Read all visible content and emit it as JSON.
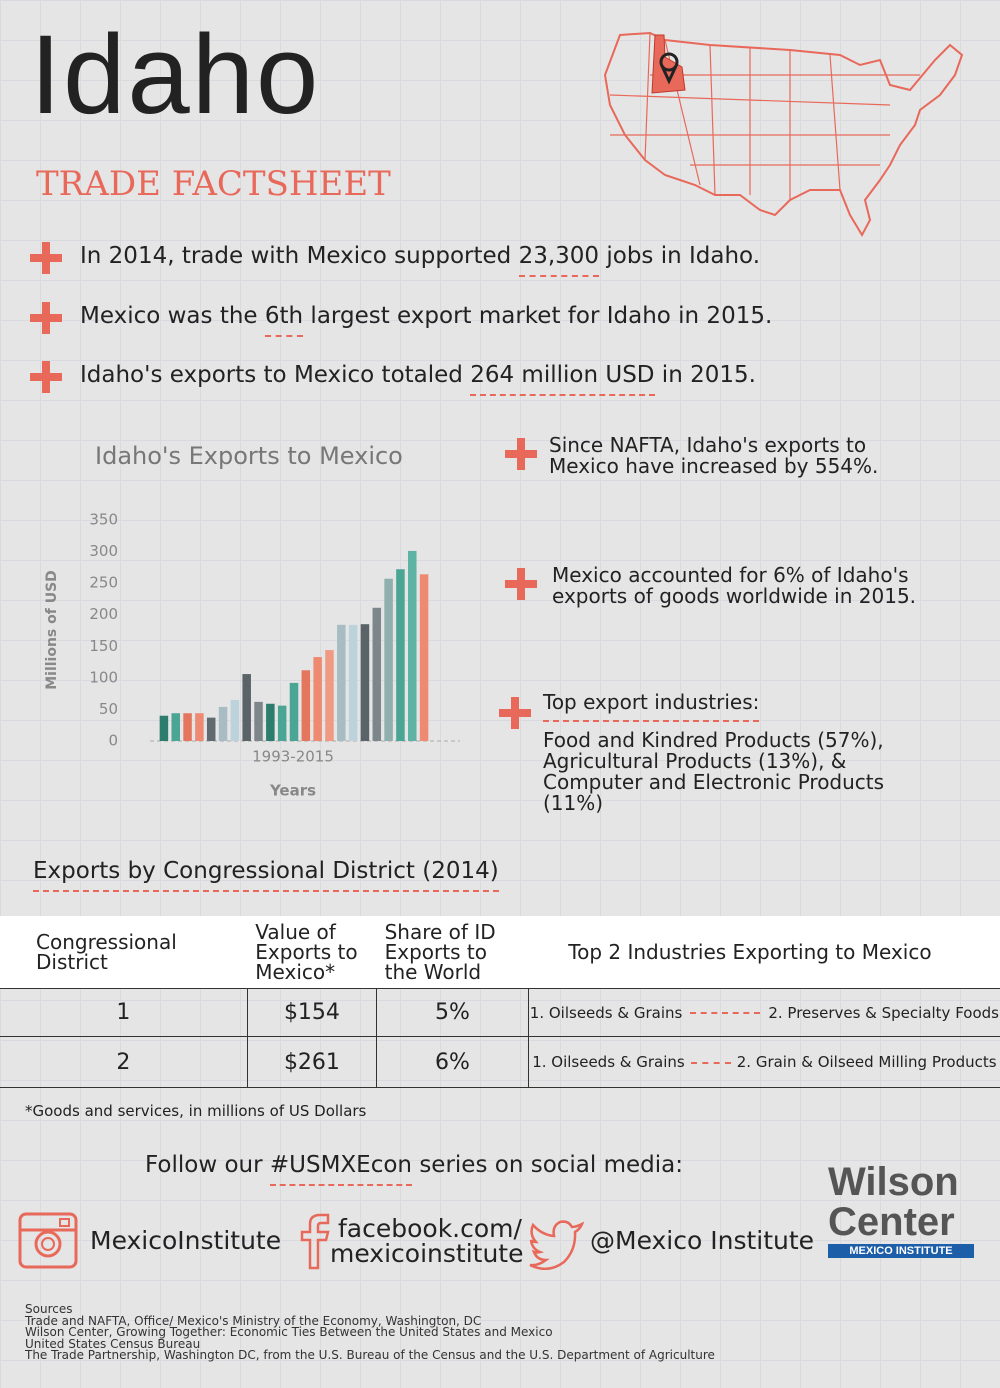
{
  "header": {
    "title": "Idaho",
    "subtitle": "TRADE FACTSHEET"
  },
  "facts": [
    {
      "before": "In 2014, trade with Mexico supported ",
      "highlight": "23,300",
      "after": " jobs in Idaho."
    },
    {
      "before": "Mexico was the ",
      "highlight": "6th",
      "after": " largest export market for Idaho in 2015."
    },
    {
      "before": "Idaho's exports to Mexico totaled ",
      "highlight": "264 million USD",
      "after": " in 2015."
    }
  ],
  "notes": [
    {
      "text": "Since NAFTA, Idaho's exports to Mexico have increased by 554%."
    },
    {
      "text": "Mexico accounted for 6% of Idaho's exports of goods worldwide in 2015."
    },
    {
      "heading": "Top export industries:",
      "text": "Food and Kindred Products (57%), Agricultural Products (13%), & Computer and Electronic Products (11%)"
    }
  ],
  "chart_data": {
    "type": "bar",
    "title": "Idaho's Exports to Mexico",
    "ylabel": "Millions of USD",
    "xlabel": "Years",
    "x_range_label": "1993-2015",
    "categories": [
      null,
      null,
      null,
      null,
      null,
      null,
      null,
      null,
      null,
      null,
      null,
      null,
      null,
      null,
      null,
      null,
      null,
      null,
      null,
      null,
      null,
      null,
      null
    ],
    "values": [
      40,
      44,
      44,
      44,
      37,
      54,
      65,
      106,
      62,
      59,
      56,
      92,
      112,
      133,
      144,
      184,
      184,
      185,
      211,
      257,
      272,
      301,
      264
    ],
    "colors": [
      "#2d7d6f",
      "#4aa595",
      "#e5765e",
      "#ee8a72",
      "#606b70",
      "#a8bcc4",
      "#bcd3dc",
      "#5a6468",
      "#7d878b",
      "#2d7d6f",
      "#4aa595",
      "#4aa595",
      "#e5765e",
      "#ee8a72",
      "#f09a84",
      "#a8bcc4",
      "#bcd3dc",
      "#5a6468",
      "#7d878b",
      "#8fb0ad",
      "#4aa595",
      "#5fb3a5",
      "#ee8a72"
    ],
    "ylim": [
      0,
      350
    ],
    "yticks": [
      0,
      50,
      100,
      150,
      200,
      250,
      300,
      350
    ],
    "grid": false
  },
  "table": {
    "title": "Exports by Congressional District (2014)",
    "columns": [
      "Congressional District",
      "Value of Exports to Mexico*",
      "Share of ID Exports to the World",
      "Top 2 Industries Exporting to Mexico"
    ],
    "rows": [
      [
        "1",
        "$154",
        "5%",
        "1. Oilseeds & Grains",
        "2. Preserves & Specialty Foods"
      ],
      [
        "2",
        "$261",
        "6%",
        "1. Oilseeds & Grains",
        "2. Grain & Oilseed Milling Products"
      ]
    ],
    "footnote": "*Goods and services, in millions of US Dollars"
  },
  "social": {
    "before": "Follow our ",
    "highlight": "#USMXEcon",
    "after": " series on social media:",
    "instagram": "MexicoInstitute",
    "facebook": [
      "facebook.com/",
      "mexicoinstitute"
    ],
    "twitter": "@Mexico Institute"
  },
  "logo": {
    "line1": "Wilson",
    "line2": "Center",
    "tag": "MEXICO INSTITUTE"
  },
  "sources": [
    "Sources",
    "Trade and NAFTA, Office/ Mexico's Ministry of the Economy, Washington, DC",
    "Wilson Center, Growing Together: Economic Ties Between the United States and Mexico",
    "United States Census Bureau",
    "The Trade Partnership, Washington DC, from the U.S. Bureau of the Census and the U.S. Department of Agriculture"
  ]
}
